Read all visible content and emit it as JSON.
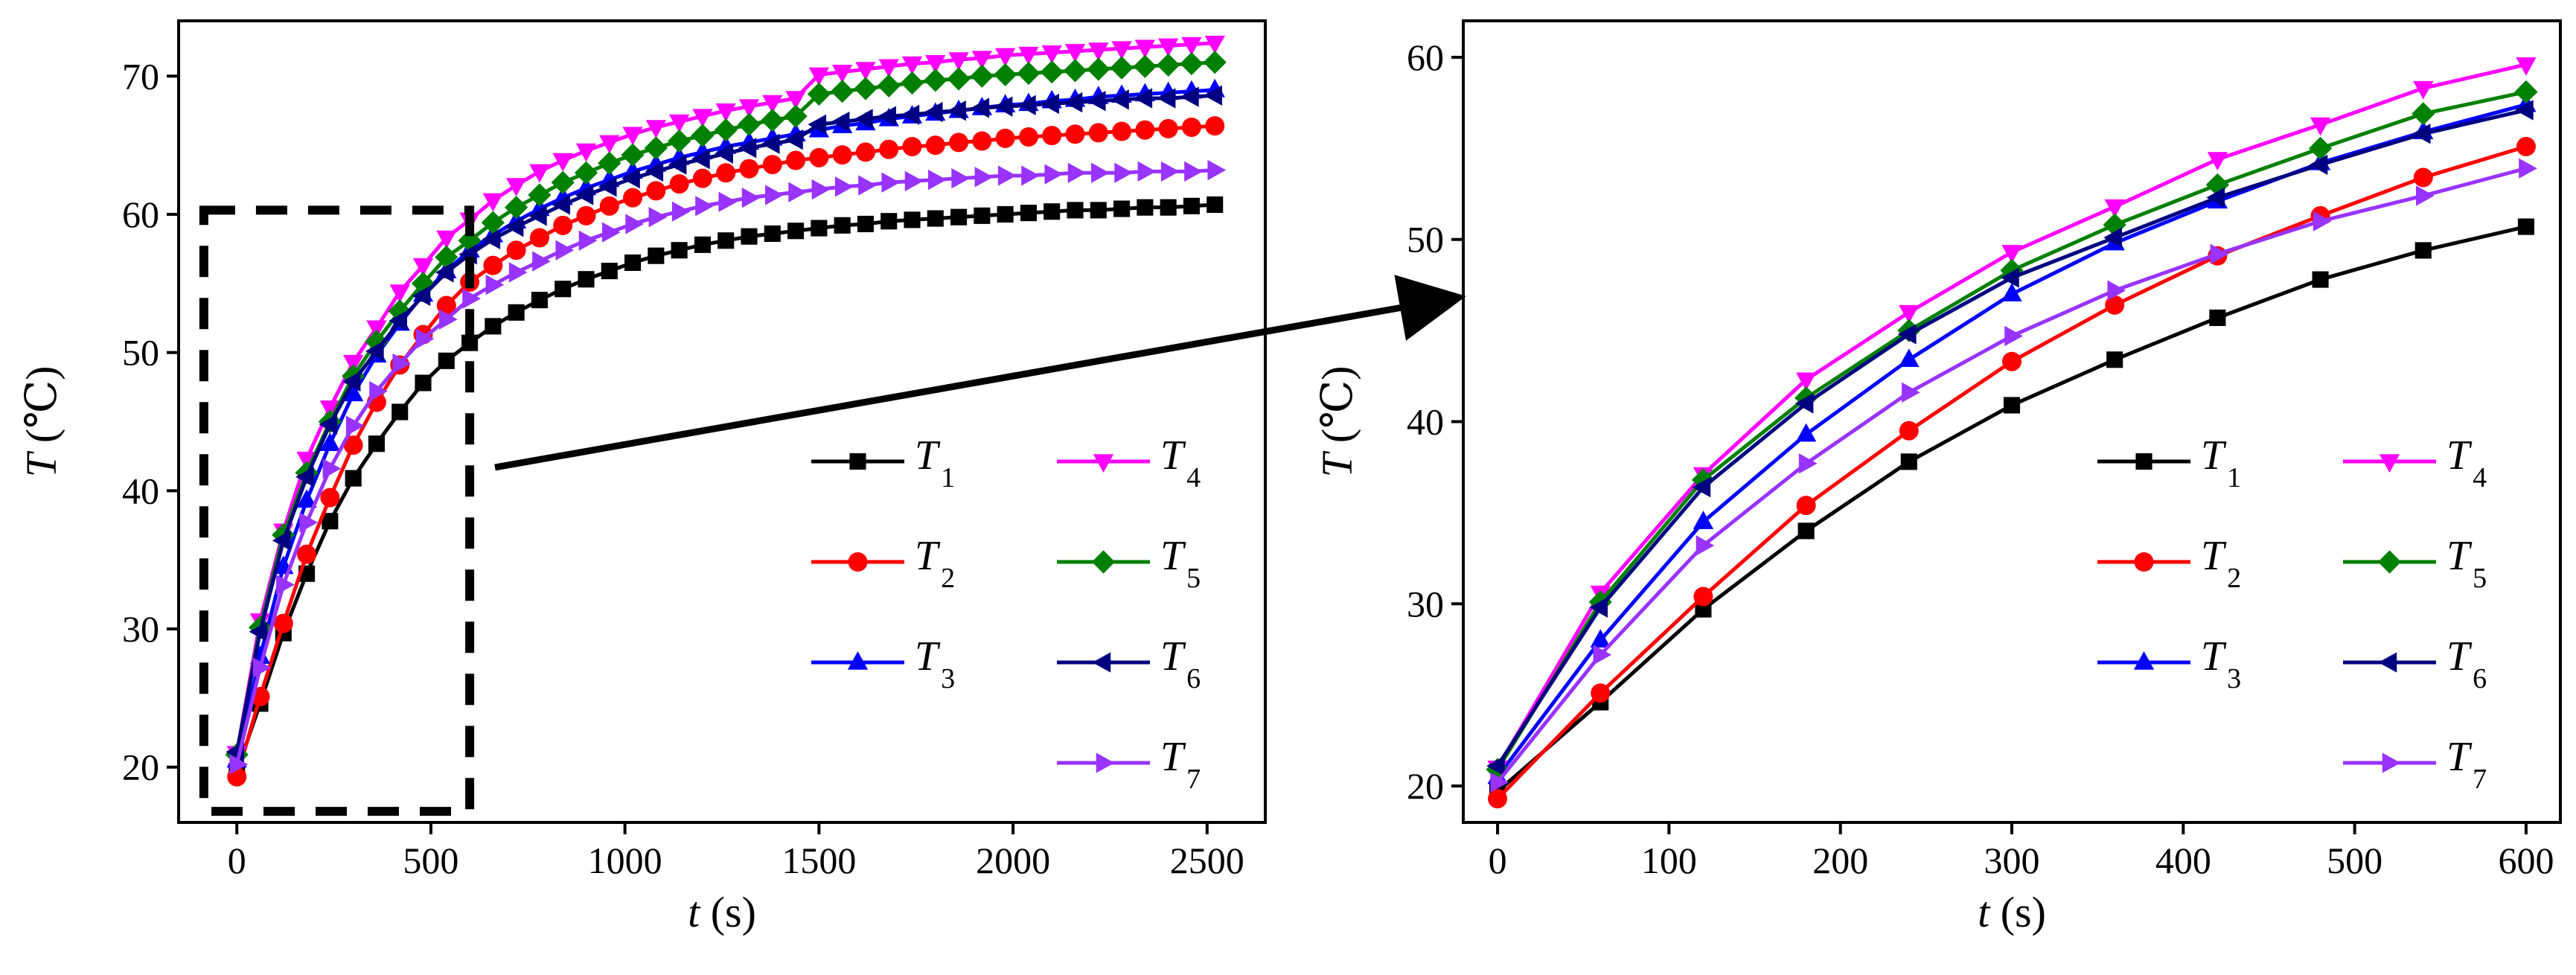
{
  "chart_data": [
    {
      "type": "line",
      "panel": "left",
      "xlabel_var": "t",
      "xlabel_unit": " (s)",
      "ylabel_var": "T",
      "ylabel_unit": "(℃)",
      "xlim": [
        -150,
        2650
      ],
      "ylim": [
        16,
        74
      ],
      "xticks": [
        0,
        500,
        1000,
        1500,
        2000,
        2500
      ],
      "yticks": [
        20,
        30,
        40,
        50,
        60,
        70
      ],
      "x": [
        0,
        60,
        120,
        180,
        240,
        300,
        360,
        420,
        480,
        540,
        600,
        660,
        720,
        780,
        840,
        900,
        960,
        1020,
        1080,
        1140,
        1200,
        1260,
        1320,
        1380,
        1440,
        1500,
        1560,
        1620,
        1680,
        1740,
        1800,
        1860,
        1920,
        1980,
        2040,
        2100,
        2160,
        2220,
        2280,
        2340,
        2400,
        2460,
        2520
      ],
      "series": [
        {
          "name": "T",
          "sub": "1",
          "color": "#000000",
          "marker": "square",
          "values": [
            19.7,
            24.6,
            29.7,
            34.0,
            37.8,
            40.9,
            43.4,
            45.7,
            47.8,
            49.4,
            50.7,
            51.9,
            52.9,
            53.8,
            54.6,
            55.3,
            55.9,
            56.5,
            57.0,
            57.4,
            57.8,
            58.1,
            58.4,
            58.6,
            58.8,
            59.0,
            59.2,
            59.3,
            59.5,
            59.6,
            59.7,
            59.8,
            59.9,
            60.0,
            60.1,
            60.2,
            60.3,
            60.3,
            60.4,
            60.5,
            60.5,
            60.6,
            60.7
          ]
        },
        {
          "name": "T",
          "sub": "2",
          "color": "#ff0000",
          "marker": "circle",
          "values": [
            19.3,
            25.1,
            30.4,
            35.4,
            39.5,
            43.3,
            46.4,
            49.1,
            51.3,
            53.4,
            55.1,
            56.3,
            57.4,
            58.3,
            59.2,
            59.9,
            60.6,
            61.2,
            61.7,
            62.2,
            62.6,
            63.0,
            63.3,
            63.6,
            63.9,
            64.1,
            64.3,
            64.5,
            64.7,
            64.9,
            65.0,
            65.2,
            65.3,
            65.5,
            65.6,
            65.7,
            65.8,
            65.9,
            66.0,
            66.1,
            66.2,
            66.3,
            66.4
          ]
        },
        {
          "name": "T",
          "sub": "3",
          "color": "#0000ff",
          "marker": "triangle-up",
          "values": [
            20.5,
            28.0,
            34.5,
            39.3,
            43.4,
            47.0,
            49.8,
            52.1,
            54.2,
            55.9,
            57.4,
            58.5,
            59.5,
            60.4,
            61.2,
            61.9,
            62.5,
            63.1,
            63.6,
            64.1,
            64.5,
            64.9,
            65.2,
            65.5,
            65.8,
            66.1,
            66.4,
            66.6,
            66.9,
            67.1,
            67.3,
            67.5,
            67.7,
            67.9,
            68.0,
            68.2,
            68.3,
            68.5,
            68.6,
            68.7,
            68.8,
            68.9,
            69.0
          ]
        },
        {
          "name": "T",
          "sub": "4",
          "color": "#ff00ff",
          "marker": "triangle-down",
          "values": [
            21.0,
            30.6,
            37.1,
            42.3,
            46.0,
            49.3,
            51.8,
            54.4,
            56.3,
            58.3,
            59.6,
            61.0,
            62.1,
            63.1,
            63.9,
            64.6,
            65.2,
            65.8,
            66.3,
            66.7,
            67.1,
            67.5,
            67.8,
            68.1,
            68.4,
            70.1,
            70.3,
            70.5,
            70.7,
            70.9,
            71.0,
            71.2,
            71.3,
            71.5,
            71.6,
            71.7,
            71.8,
            71.9,
            72.0,
            72.1,
            72.2,
            72.3,
            72.4
          ]
        },
        {
          "name": "T",
          "sub": "5",
          "color": "#008000",
          "marker": "diamond",
          "values": [
            20.9,
            30.1,
            36.8,
            41.3,
            45.0,
            48.3,
            50.8,
            53.0,
            55.0,
            56.9,
            58.1,
            59.4,
            60.5,
            61.4,
            62.3,
            63.0,
            63.7,
            64.3,
            64.8,
            65.3,
            65.7,
            66.1,
            66.5,
            66.8,
            67.1,
            68.7,
            68.9,
            69.1,
            69.3,
            69.5,
            69.7,
            69.8,
            70.0,
            70.1,
            70.2,
            70.3,
            70.4,
            70.5,
            70.6,
            70.7,
            70.8,
            70.9,
            71.0
          ]
        },
        {
          "name": "T",
          "sub": "6",
          "color": "#000080",
          "marker": "triangle-left",
          "values": [
            21.1,
            29.8,
            36.4,
            41.0,
            44.8,
            47.9,
            50.1,
            52.3,
            54.1,
            55.8,
            57.1,
            58.2,
            59.1,
            59.9,
            60.7,
            61.4,
            62.0,
            62.6,
            63.1,
            63.6,
            64.0,
            64.4,
            64.8,
            65.1,
            65.4,
            66.5,
            66.7,
            66.9,
            67.1,
            67.2,
            67.4,
            67.5,
            67.7,
            67.8,
            67.9,
            68.0,
            68.1,
            68.2,
            68.3,
            68.4,
            68.4,
            68.5,
            68.6
          ]
        },
        {
          "name": "T",
          "sub": "7",
          "color": "#9933ff",
          "marker": "triangle-right",
          "values": [
            20.2,
            27.2,
            33.2,
            37.7,
            41.6,
            44.7,
            47.2,
            49.2,
            51.0,
            52.4,
            53.9,
            54.9,
            55.8,
            56.6,
            57.4,
            58.1,
            58.7,
            59.3,
            59.8,
            60.2,
            60.6,
            60.9,
            61.2,
            61.4,
            61.6,
            61.8,
            62.0,
            62.1,
            62.3,
            62.4,
            62.5,
            62.6,
            62.7,
            62.8,
            62.8,
            62.9,
            63.0,
            63.0,
            63.0,
            63.1,
            63.1,
            63.1,
            63.2
          ]
        }
      ],
      "annotations": [
        "dashed zoom box marking the 0-600 s range",
        "arrow pointing to the right panel"
      ]
    },
    {
      "type": "line",
      "panel": "right",
      "xlabel_var": "t",
      "xlabel_unit": " (s)",
      "ylabel_var": "T",
      "ylabel_unit": "(℃)",
      "xlim": [
        -20,
        620
      ],
      "ylim": [
        18,
        62
      ],
      "xticks": [
        0,
        100,
        200,
        300,
        400,
        500,
        600
      ],
      "yticks": [
        20,
        30,
        40,
        50,
        60
      ],
      "x": [
        0,
        60,
        120,
        180,
        240,
        300,
        360,
        420,
        480,
        540,
        600
      ],
      "series": [
        {
          "name": "T",
          "sub": "1",
          "color": "#000000",
          "marker": "square",
          "values": [
            19.7,
            24.6,
            29.7,
            34.0,
            37.8,
            40.9,
            43.4,
            45.7,
            47.8,
            49.4,
            50.7
          ]
        },
        {
          "name": "T",
          "sub": "2",
          "color": "#ff0000",
          "marker": "circle",
          "values": [
            19.3,
            25.1,
            30.4,
            35.4,
            39.5,
            43.3,
            46.4,
            49.1,
            51.3,
            53.4,
            55.1
          ]
        },
        {
          "name": "T",
          "sub": "3",
          "color": "#0000ff",
          "marker": "triangle-up",
          "values": [
            20.5,
            28.0,
            34.5,
            39.3,
            43.4,
            47.0,
            49.8,
            52.1,
            54.2,
            55.9,
            57.4
          ]
        },
        {
          "name": "T",
          "sub": "4",
          "color": "#ff00ff",
          "marker": "triangle-down",
          "values": [
            21.0,
            30.6,
            37.1,
            42.3,
            46.0,
            49.3,
            51.8,
            54.4,
            56.3,
            58.3,
            59.6
          ]
        },
        {
          "name": "T",
          "sub": "5",
          "color": "#008000",
          "marker": "diamond",
          "values": [
            20.9,
            30.1,
            36.8,
            41.3,
            45.0,
            48.3,
            50.8,
            53.0,
            55.0,
            56.9,
            58.1
          ]
        },
        {
          "name": "T",
          "sub": "6",
          "color": "#000080",
          "marker": "triangle-left",
          "values": [
            21.1,
            29.8,
            36.4,
            41.0,
            44.8,
            47.9,
            50.1,
            52.3,
            54.1,
            55.8,
            57.1
          ]
        },
        {
          "name": "T",
          "sub": "7",
          "color": "#9933ff",
          "marker": "triangle-right",
          "values": [
            20.2,
            27.2,
            33.2,
            37.7,
            41.6,
            44.7,
            47.2,
            49.2,
            51.0,
            52.4,
            53.9
          ]
        }
      ]
    }
  ]
}
